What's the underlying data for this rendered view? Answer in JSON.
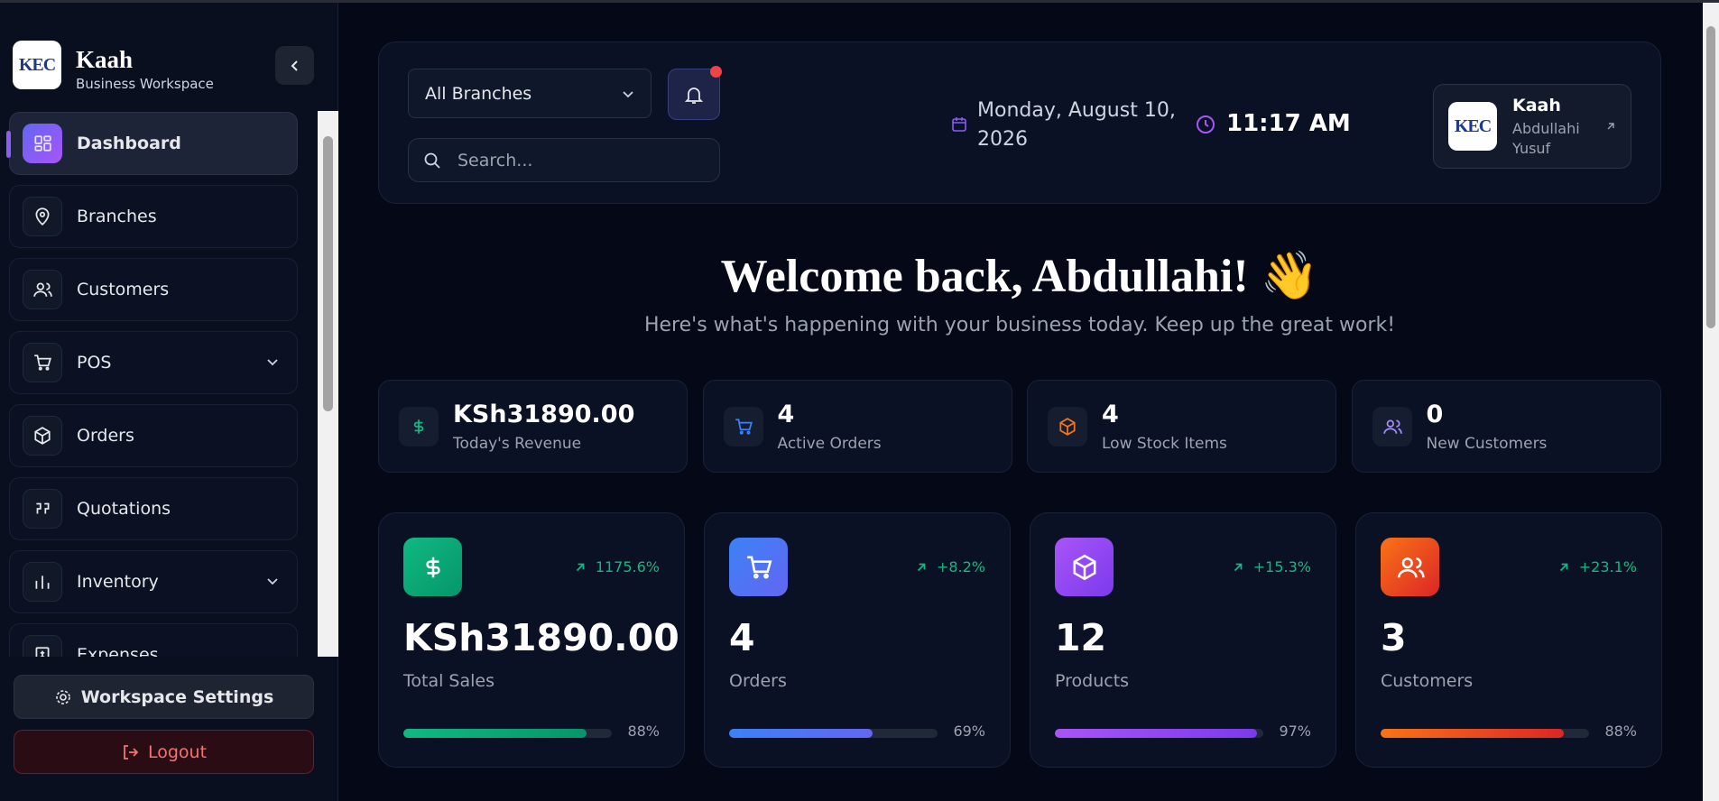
{
  "sidebar": {
    "logo": "KEC",
    "brand": "Kaah",
    "subtitle": "Business Workspace",
    "nav": [
      "Dashboard",
      "Branches",
      "Customers",
      "POS",
      "Orders",
      "Quotations",
      "Inventory",
      "Expenses"
    ],
    "settings": "Workspace Settings",
    "logout": "Logout"
  },
  "header": {
    "branch": "All Branches",
    "search_placeholder": "Search...",
    "date": "Monday, August 10, 2026",
    "time": "11:17 AM",
    "user": {
      "logo": "KEC",
      "org": "Kaah",
      "name": "Abdullahi Yusuf"
    }
  },
  "welcome": {
    "title": "Welcome back, Abdullahi! 👋",
    "subtitle": "Here's what's happening with your business today. Keep up the great work!"
  },
  "summary": [
    {
      "value": "KSh31890.00",
      "label": "Today's Revenue"
    },
    {
      "value": "4",
      "label": "Active Orders"
    },
    {
      "value": "4",
      "label": "Low Stock Items"
    },
    {
      "value": "0",
      "label": "New Customers"
    }
  ],
  "stats": [
    {
      "change": "1175.6%",
      "value": "KSh31890.00",
      "label": "Total Sales",
      "progress": 88,
      "progress_label": "88%"
    },
    {
      "change": "+8.2%",
      "value": "4",
      "label": "Orders",
      "progress": 69,
      "progress_label": "69%"
    },
    {
      "change": "+15.3%",
      "value": "12",
      "label": "Products",
      "progress": 97,
      "progress_label": "97%"
    },
    {
      "change": "+23.1%",
      "value": "3",
      "label": "Customers",
      "progress": 88,
      "progress_label": "88%"
    }
  ]
}
